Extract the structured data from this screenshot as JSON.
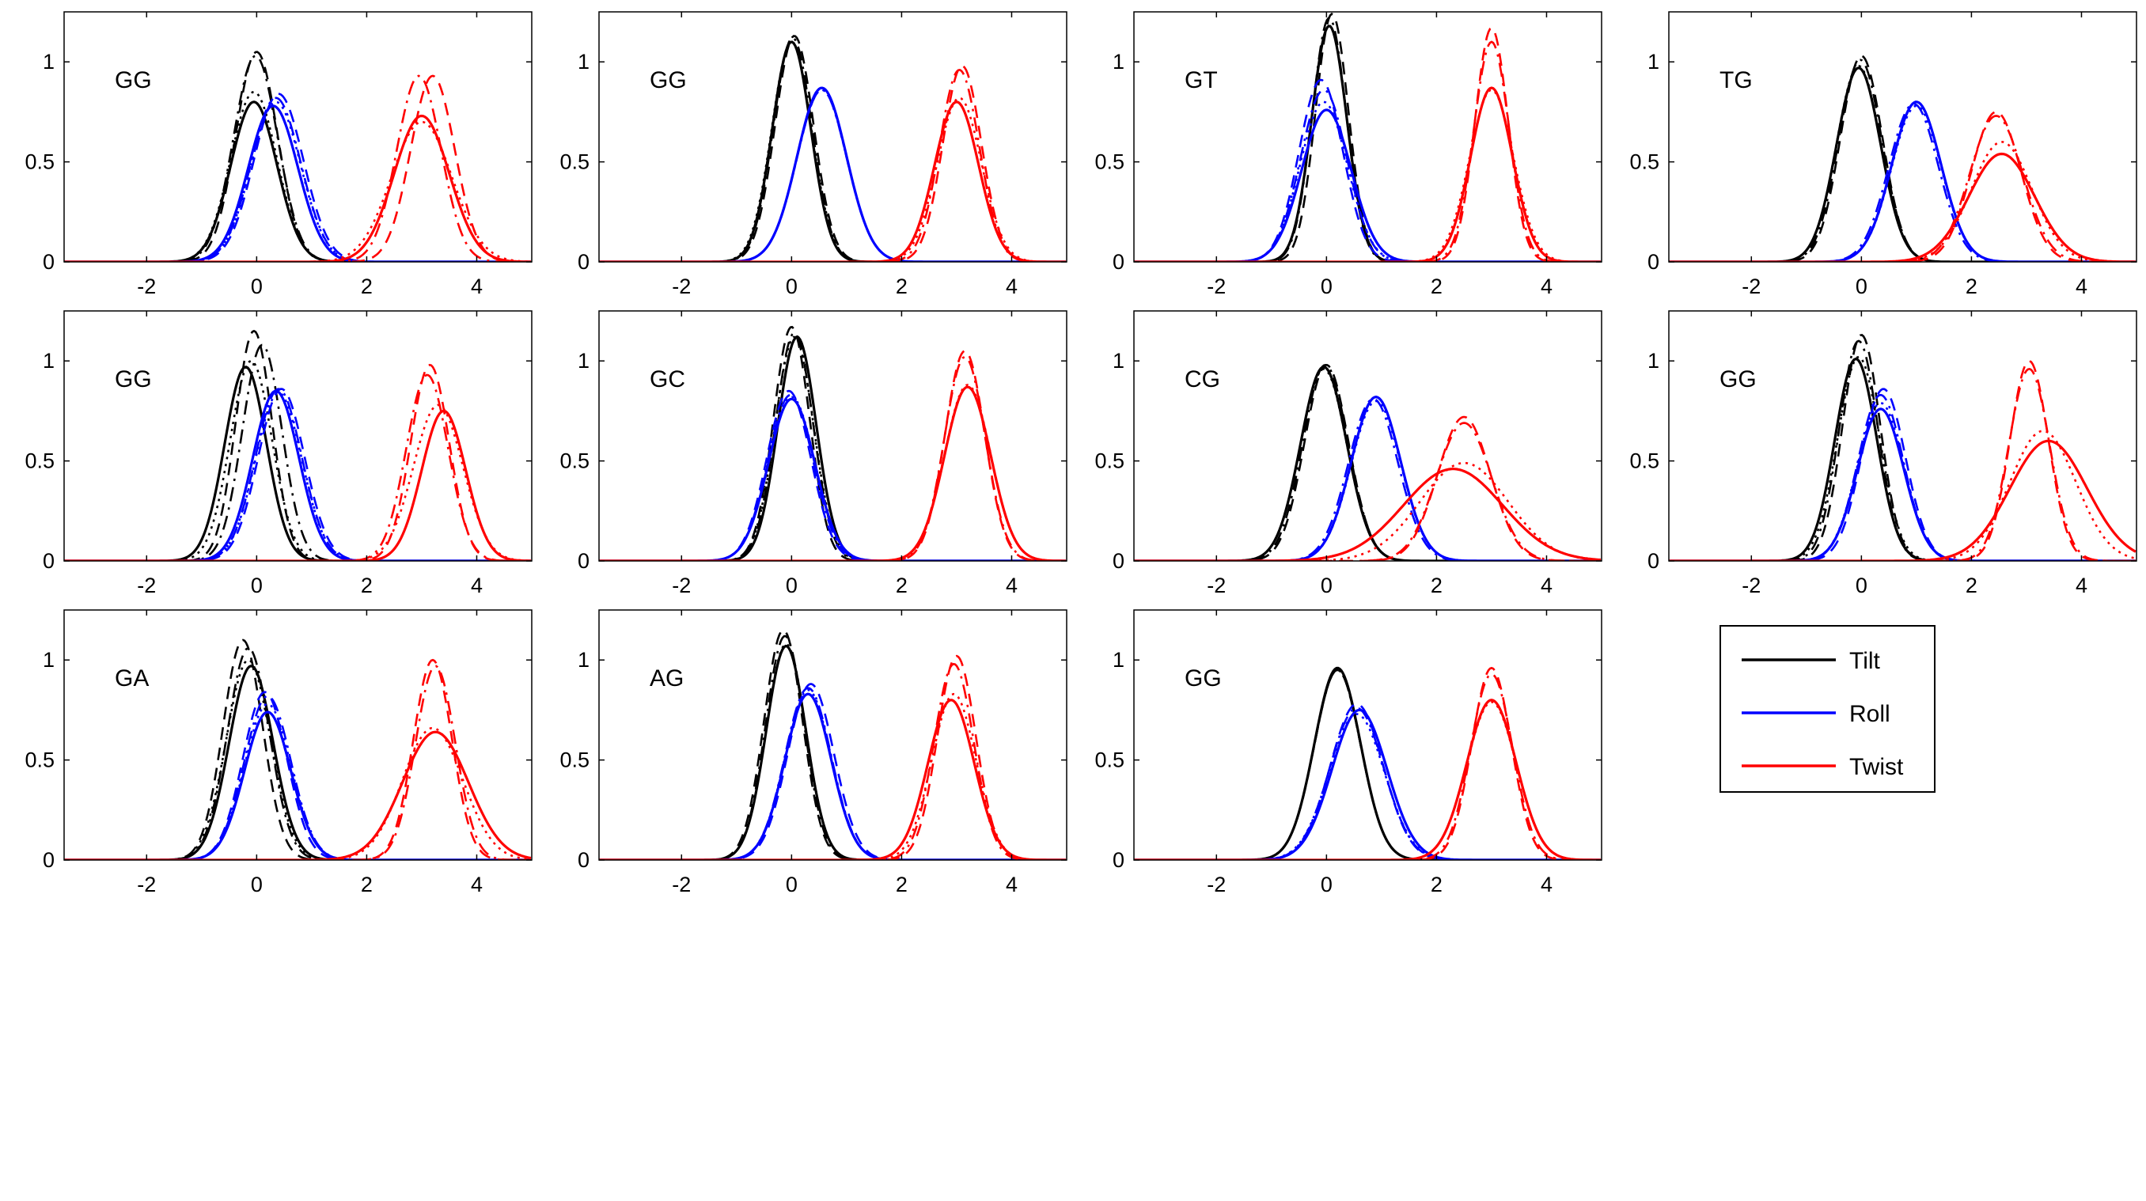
{
  "colors": {
    "Tilt": "#000000",
    "Roll": "#0000ff",
    "Twist": "#ff0000"
  },
  "legend": {
    "entries": [
      "Tilt",
      "Roll",
      "Twist"
    ],
    "placement": "grid-position-12"
  },
  "chart_data": {
    "type": "line",
    "xlim": [
      -3.5,
      5
    ],
    "ylim": [
      0,
      1.25
    ],
    "x_ticks": [
      -2,
      0,
      2,
      4
    ],
    "y_ticks": [
      0,
      0.5,
      1
    ],
    "x_tick_labels": [
      "-2",
      "0",
      "2",
      "4"
    ],
    "y_tick_labels": [
      "0",
      "0.5",
      "1"
    ],
    "line_styles": [
      "solid",
      "dashed",
      "dashdot",
      "dotted"
    ],
    "series_names": [
      "Tilt",
      "Roll",
      "Twist"
    ],
    "panels": [
      {
        "label": "GG",
        "curves": {
          "Tilt": [
            {
              "mu": -0.05,
              "sigma": 0.42,
              "peak": 0.8
            },
            {
              "mu": 0.0,
              "sigma": 0.38,
              "peak": 1.05
            },
            {
              "mu": -0.02,
              "sigma": 0.4,
              "peak": 1.03
            },
            {
              "mu": -0.05,
              "sigma": 0.42,
              "peak": 0.85
            }
          ],
          "Roll": [
            {
              "mu": 0.3,
              "sigma": 0.45,
              "peak": 0.78
            },
            {
              "mu": 0.4,
              "sigma": 0.45,
              "peak": 0.84
            },
            {
              "mu": 0.35,
              "sigma": 0.45,
              "peak": 0.82
            },
            {
              "mu": 0.35,
              "sigma": 0.45,
              "peak": 0.8
            }
          ],
          "Twist": [
            {
              "mu": 3.0,
              "sigma": 0.5,
              "peak": 0.73
            },
            {
              "mu": 3.2,
              "sigma": 0.4,
              "peak": 0.93
            },
            {
              "mu": 2.95,
              "sigma": 0.4,
              "peak": 0.93
            },
            {
              "mu": 3.0,
              "sigma": 0.55,
              "peak": 0.7
            }
          ]
        }
      },
      {
        "label": "GG",
        "curves": {
          "Tilt": [
            {
              "mu": 0.0,
              "sigma": 0.35,
              "peak": 1.1
            },
            {
              "mu": 0.05,
              "sigma": 0.35,
              "peak": 1.13
            },
            {
              "mu": 0.02,
              "sigma": 0.35,
              "peak": 1.12
            },
            {
              "mu": 0.0,
              "sigma": 0.36,
              "peak": 1.1
            }
          ],
          "Roll": [
            {
              "mu": 0.55,
              "sigma": 0.45,
              "peak": 0.87
            },
            {
              "mu": 0.55,
              "sigma": 0.45,
              "peak": 0.87
            },
            {
              "mu": 0.55,
              "sigma": 0.45,
              "peak": 0.86
            },
            {
              "mu": 0.55,
              "sigma": 0.45,
              "peak": 0.86
            }
          ],
          "Twist": [
            {
              "mu": 3.0,
              "sigma": 0.4,
              "peak": 0.8
            },
            {
              "mu": 3.1,
              "sigma": 0.35,
              "peak": 0.98
            },
            {
              "mu": 3.05,
              "sigma": 0.36,
              "peak": 0.96
            },
            {
              "mu": 3.05,
              "sigma": 0.4,
              "peak": 0.82
            }
          ]
        }
      },
      {
        "label": "GT",
        "curves": {
          "Tilt": [
            {
              "mu": 0.05,
              "sigma": 0.32,
              "peak": 1.18
            },
            {
              "mu": 0.1,
              "sigma": 0.3,
              "peak": 1.24
            },
            {
              "mu": 0.05,
              "sigma": 0.31,
              "peak": 1.22
            },
            {
              "mu": 0.05,
              "sigma": 0.32,
              "peak": 1.18
            }
          ],
          "Roll": [
            {
              "mu": 0.0,
              "sigma": 0.45,
              "peak": 0.76
            },
            {
              "mu": -0.1,
              "sigma": 0.4,
              "peak": 0.91
            },
            {
              "mu": -0.05,
              "sigma": 0.42,
              "peak": 0.86
            },
            {
              "mu": -0.05,
              "sigma": 0.43,
              "peak": 0.8
            }
          ],
          "Twist": [
            {
              "mu": 3.0,
              "sigma": 0.38,
              "peak": 0.87
            },
            {
              "mu": 3.0,
              "sigma": 0.3,
              "peak": 1.17
            },
            {
              "mu": 3.0,
              "sigma": 0.32,
              "peak": 1.1
            },
            {
              "mu": 3.0,
              "sigma": 0.4,
              "peak": 0.86
            }
          ]
        }
      },
      {
        "label": "TG",
        "curves": {
          "Tilt": [
            {
              "mu": -0.05,
              "sigma": 0.4,
              "peak": 0.97
            },
            {
              "mu": 0.0,
              "sigma": 0.38,
              "peak": 1.03
            },
            {
              "mu": -0.02,
              "sigma": 0.39,
              "peak": 1.01
            },
            {
              "mu": -0.05,
              "sigma": 0.4,
              "peak": 0.98
            }
          ],
          "Roll": [
            {
              "mu": 1.0,
              "sigma": 0.45,
              "peak": 0.8
            },
            {
              "mu": 1.0,
              "sigma": 0.45,
              "peak": 0.8
            },
            {
              "mu": 0.95,
              "sigma": 0.45,
              "peak": 0.79
            },
            {
              "mu": 1.0,
              "sigma": 0.45,
              "peak": 0.78
            }
          ],
          "Twist": [
            {
              "mu": 2.55,
              "sigma": 0.6,
              "peak": 0.54
            },
            {
              "mu": 2.45,
              "sigma": 0.45,
              "peak": 0.75
            },
            {
              "mu": 2.45,
              "sigma": 0.48,
              "peak": 0.73
            },
            {
              "mu": 2.55,
              "sigma": 0.55,
              "peak": 0.6
            }
          ]
        }
      },
      {
        "label": "GG",
        "curves": {
          "Tilt": [
            {
              "mu": -0.2,
              "sigma": 0.38,
              "peak": 0.97
            },
            {
              "mu": -0.05,
              "sigma": 0.33,
              "peak": 1.15
            },
            {
              "mu": 0.1,
              "sigma": 0.36,
              "peak": 1.08
            },
            {
              "mu": -0.1,
              "sigma": 0.38,
              "peak": 1.0
            }
          ],
          "Roll": [
            {
              "mu": 0.35,
              "sigma": 0.42,
              "peak": 0.85
            },
            {
              "mu": 0.45,
              "sigma": 0.42,
              "peak": 0.86
            },
            {
              "mu": 0.4,
              "sigma": 0.42,
              "peak": 0.86
            },
            {
              "mu": 0.4,
              "sigma": 0.42,
              "peak": 0.84
            }
          ],
          "Twist": [
            {
              "mu": 3.4,
              "sigma": 0.4,
              "peak": 0.75
            },
            {
              "mu": 3.15,
              "sigma": 0.35,
              "peak": 0.98
            },
            {
              "mu": 3.1,
              "sigma": 0.38,
              "peak": 0.93
            },
            {
              "mu": 3.3,
              "sigma": 0.45,
              "peak": 0.78
            }
          ]
        }
      },
      {
        "label": "GC",
        "curves": {
          "Tilt": [
            {
              "mu": 0.1,
              "sigma": 0.35,
              "peak": 1.12
            },
            {
              "mu": 0.0,
              "sigma": 0.33,
              "peak": 1.17
            },
            {
              "mu": 0.05,
              "sigma": 0.34,
              "peak": 1.14
            },
            {
              "mu": 0.05,
              "sigma": 0.35,
              "peak": 1.12
            }
          ],
          "Roll": [
            {
              "mu": 0.0,
              "sigma": 0.42,
              "peak": 0.81
            },
            {
              "mu": -0.05,
              "sigma": 0.4,
              "peak": 0.85
            },
            {
              "mu": -0.02,
              "sigma": 0.41,
              "peak": 0.83
            },
            {
              "mu": 0.0,
              "sigma": 0.42,
              "peak": 0.82
            }
          ],
          "Twist": [
            {
              "mu": 3.2,
              "sigma": 0.42,
              "peak": 0.87
            },
            {
              "mu": 3.15,
              "sigma": 0.36,
              "peak": 1.05
            },
            {
              "mu": 3.15,
              "sigma": 0.37,
              "peak": 1.02
            },
            {
              "mu": 3.2,
              "sigma": 0.42,
              "peak": 0.88
            }
          ]
        }
      },
      {
        "label": "CG",
        "curves": {
          "Tilt": [
            {
              "mu": -0.05,
              "sigma": 0.42,
              "peak": 0.97
            },
            {
              "mu": 0.0,
              "sigma": 0.4,
              "peak": 0.98
            },
            {
              "mu": -0.02,
              "sigma": 0.41,
              "peak": 0.98
            },
            {
              "mu": -0.05,
              "sigma": 0.42,
              "peak": 0.96
            }
          ],
          "Roll": [
            {
              "mu": 0.9,
              "sigma": 0.45,
              "peak": 0.82
            },
            {
              "mu": 0.9,
              "sigma": 0.45,
              "peak": 0.82
            },
            {
              "mu": 0.85,
              "sigma": 0.45,
              "peak": 0.81
            },
            {
              "mu": 0.9,
              "sigma": 0.45,
              "peak": 0.8
            }
          ],
          "Twist": [
            {
              "mu": 2.3,
              "sigma": 0.9,
              "peak": 0.46
            },
            {
              "mu": 2.5,
              "sigma": 0.48,
              "peak": 0.72
            },
            {
              "mu": 2.5,
              "sigma": 0.5,
              "peak": 0.69
            },
            {
              "mu": 2.5,
              "sigma": 0.8,
              "peak": 0.49
            }
          ]
        }
      },
      {
        "label": "GG",
        "curves": {
          "Tilt": [
            {
              "mu": -0.1,
              "sigma": 0.38,
              "peak": 1.01
            },
            {
              "mu": 0.0,
              "sigma": 0.34,
              "peak": 1.13
            },
            {
              "mu": -0.05,
              "sigma": 0.35,
              "peak": 1.1
            },
            {
              "mu": -0.05,
              "sigma": 0.38,
              "peak": 1.02
            }
          ],
          "Roll": [
            {
              "mu": 0.35,
              "sigma": 0.42,
              "peak": 0.76
            },
            {
              "mu": 0.4,
              "sigma": 0.4,
              "peak": 0.86
            },
            {
              "mu": 0.35,
              "sigma": 0.41,
              "peak": 0.83
            },
            {
              "mu": 0.35,
              "sigma": 0.42,
              "peak": 0.79
            }
          ],
          "Twist": [
            {
              "mu": 3.4,
              "sigma": 0.7,
              "peak": 0.6
            },
            {
              "mu": 3.05,
              "sigma": 0.35,
              "peak": 1.0
            },
            {
              "mu": 3.05,
              "sigma": 0.37,
              "peak": 0.96
            },
            {
              "mu": 3.3,
              "sigma": 0.6,
              "peak": 0.65
            }
          ]
        }
      },
      {
        "label": "GA",
        "curves": {
          "Tilt": [
            {
              "mu": -0.1,
              "sigma": 0.4,
              "peak": 0.97
            },
            {
              "mu": -0.25,
              "sigma": 0.36,
              "peak": 1.1
            },
            {
              "mu": -0.15,
              "sigma": 0.38,
              "peak": 1.06
            },
            {
              "mu": -0.15,
              "sigma": 0.4,
              "peak": 1.0
            }
          ],
          "Roll": [
            {
              "mu": 0.2,
              "sigma": 0.42,
              "peak": 0.74
            },
            {
              "mu": 0.15,
              "sigma": 0.4,
              "peak": 0.84
            },
            {
              "mu": 0.2,
              "sigma": 0.42,
              "peak": 0.82
            },
            {
              "mu": 0.2,
              "sigma": 0.42,
              "peak": 0.78
            }
          ],
          "Twist": [
            {
              "mu": 3.25,
              "sigma": 0.6,
              "peak": 0.64
            },
            {
              "mu": 3.2,
              "sigma": 0.35,
              "peak": 1.0
            },
            {
              "mu": 3.25,
              "sigma": 0.36,
              "peak": 0.97
            },
            {
              "mu": 3.2,
              "sigma": 0.55,
              "peak": 0.66
            }
          ]
        }
      },
      {
        "label": "AG",
        "curves": {
          "Tilt": [
            {
              "mu": -0.1,
              "sigma": 0.36,
              "peak": 1.07
            },
            {
              "mu": -0.15,
              "sigma": 0.35,
              "peak": 1.15
            },
            {
              "mu": -0.12,
              "sigma": 0.35,
              "peak": 1.12
            },
            {
              "mu": -0.1,
              "sigma": 0.36,
              "peak": 1.08
            }
          ],
          "Roll": [
            {
              "mu": 0.3,
              "sigma": 0.42,
              "peak": 0.83
            },
            {
              "mu": 0.35,
              "sigma": 0.42,
              "peak": 0.88
            },
            {
              "mu": 0.3,
              "sigma": 0.42,
              "peak": 0.86
            },
            {
              "mu": 0.3,
              "sigma": 0.42,
              "peak": 0.85
            }
          ],
          "Twist": [
            {
              "mu": 2.9,
              "sigma": 0.42,
              "peak": 0.8
            },
            {
              "mu": 3.0,
              "sigma": 0.35,
              "peak": 1.02
            },
            {
              "mu": 2.95,
              "sigma": 0.36,
              "peak": 0.98
            },
            {
              "mu": 2.95,
              "sigma": 0.4,
              "peak": 0.83
            }
          ]
        }
      },
      {
        "label": "GG",
        "curves": {
          "Tilt": [
            {
              "mu": 0.2,
              "sigma": 0.42,
              "peak": 0.96
            },
            {
              "mu": 0.2,
              "sigma": 0.42,
              "peak": 0.95
            },
            {
              "mu": 0.2,
              "sigma": 0.42,
              "peak": 0.95
            },
            {
              "mu": 0.2,
              "sigma": 0.42,
              "peak": 0.95
            }
          ],
          "Roll": [
            {
              "mu": 0.6,
              "sigma": 0.5,
              "peak": 0.75
            },
            {
              "mu": 0.55,
              "sigma": 0.48,
              "peak": 0.78
            },
            {
              "mu": 0.55,
              "sigma": 0.49,
              "peak": 0.76
            },
            {
              "mu": 0.55,
              "sigma": 0.5,
              "peak": 0.73
            }
          ],
          "Twist": [
            {
              "mu": 3.0,
              "sigma": 0.45,
              "peak": 0.8
            },
            {
              "mu": 3.0,
              "sigma": 0.36,
              "peak": 0.96
            },
            {
              "mu": 3.0,
              "sigma": 0.38,
              "peak": 0.93
            },
            {
              "mu": 3.0,
              "sigma": 0.45,
              "peak": 0.79
            }
          ]
        }
      }
    ]
  }
}
